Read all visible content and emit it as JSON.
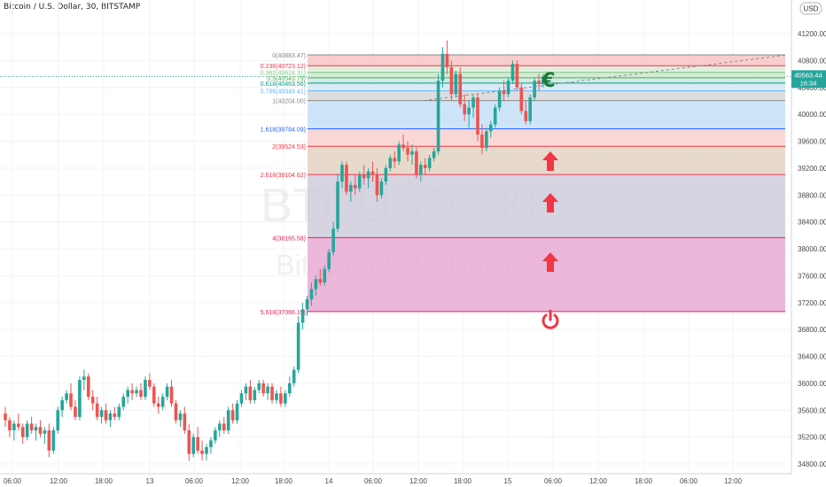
{
  "header": {
    "title": "Bitcoin / U.S. Dollar, 30, BITSTAMP"
  },
  "currency_badge": "USD",
  "watermark": {
    "symbol": "BTCUSD, 30",
    "name": "Bitcoin / U.S. Dollar"
  },
  "price_tag": {
    "price": "40563.44",
    "countdown": "16:34"
  },
  "y_ticks": [
    "41200.00",
    "40800.00",
    "40400.00",
    "40000.00",
    "39600.00",
    "39200.00",
    "38800.00",
    "38400.00",
    "38000.00",
    "37600.00",
    "37200.00",
    "36800.00",
    "36400.00",
    "36000.00",
    "35600.00",
    "35200.00",
    "34800.00"
  ],
  "x_ticks": [
    "06:00",
    "12:00",
    "18:00",
    "13",
    "06:00",
    "12:00",
    "18:00",
    "14",
    "06:00",
    "12:00",
    "18:00",
    "15",
    "06:00",
    "12:00",
    "18:00",
    "06:00",
    "12:00"
  ],
  "fib_levels": [
    {
      "label": "0(40883.47)",
      "ratio": 0,
      "price": 40883.47,
      "color": "#888888"
    },
    {
      "label": "0.236(40723.12)",
      "ratio": 0.236,
      "price": 40723.12,
      "color": "#f23645"
    },
    {
      "label": "0.382(40624.31)",
      "ratio": 0.382,
      "price": 40624.31,
      "color": "#81c784"
    },
    {
      "label": "0.5(40543.79)",
      "ratio": 0.5,
      "price": 40543.79,
      "color": "#4caf50"
    },
    {
      "label": "0.618(40463.56)",
      "ratio": 0.618,
      "price": 40463.56,
      "color": "#089981"
    },
    {
      "label": "0.786(40349.41)",
      "ratio": 0.786,
      "price": 40349.41,
      "color": "#64b5f6"
    },
    {
      "label": "1(40204.00)",
      "ratio": 1,
      "price": 40204.0,
      "color": "#888888"
    },
    {
      "label": "1.618(39784.09)",
      "ratio": 1.618,
      "price": 39784.09,
      "color": "#2962ff"
    },
    {
      "label": "2(39524.53)",
      "ratio": 2,
      "price": 39524.53,
      "color": "#f23645"
    },
    {
      "label": "2.618(39104.62)",
      "ratio": 2.618,
      "price": 39104.62,
      "color": "#f23645"
    },
    {
      "label": "4(38165.58)",
      "ratio": 4,
      "price": 38165.58,
      "color": "#e91e63"
    },
    {
      "label": "5.618(37066.19)",
      "ratio": 5.618,
      "price": 37066.19,
      "color": "#e91e63"
    }
  ],
  "annotations": {
    "euro_icon": "euro-icon",
    "arrow_icon": "arrow-up-icon",
    "power_icon": "power-icon"
  },
  "colors": {
    "up": "#26a69a",
    "down": "#ef5350",
    "grid": "#f0f3fa",
    "axis_text": "#4a4a4a"
  },
  "chart_data": {
    "type": "candlestick",
    "symbol": "BTCUSD",
    "interval": "30",
    "ylim": [
      34700,
      41600
    ],
    "last_price": 40563.44,
    "ohlc": [
      [
        35550,
        35650,
        35350,
        35450
      ],
      [
        35450,
        35500,
        35200,
        35300
      ],
      [
        35300,
        35450,
        35150,
        35400
      ],
      [
        35400,
        35550,
        35300,
        35350
      ],
      [
        35350,
        35400,
        35100,
        35200
      ],
      [
        35200,
        35450,
        35150,
        35400
      ],
      [
        35400,
        35500,
        35250,
        35300
      ],
      [
        35300,
        35400,
        35150,
        35350
      ],
      [
        35350,
        35450,
        35200,
        35250
      ],
      [
        35250,
        35350,
        35100,
        35300
      ],
      [
        35300,
        35400,
        34900,
        35000
      ],
      [
        35000,
        35350,
        34950,
        35300
      ],
      [
        35300,
        35650,
        35250,
        35600
      ],
      [
        35600,
        35800,
        35500,
        35750
      ],
      [
        35750,
        35900,
        35700,
        35850
      ],
      [
        35850,
        36000,
        35600,
        35650
      ],
      [
        35650,
        35750,
        35450,
        35500
      ],
      [
        35500,
        36100,
        35450,
        36050
      ],
      [
        36050,
        36200,
        35900,
        36100
      ],
      [
        36100,
        36150,
        35750,
        35800
      ],
      [
        35800,
        35900,
        35600,
        35700
      ],
      [
        35700,
        35800,
        35450,
        35500
      ],
      [
        35500,
        35650,
        35400,
        35600
      ],
      [
        35600,
        35700,
        35400,
        35450
      ],
      [
        35450,
        35600,
        35350,
        35550
      ],
      [
        35550,
        35650,
        35450,
        35500
      ],
      [
        35500,
        35700,
        35450,
        35650
      ],
      [
        35650,
        35850,
        35600,
        35800
      ],
      [
        35800,
        35950,
        35700,
        35900
      ],
      [
        35900,
        36000,
        35750,
        35850
      ],
      [
        35850,
        35950,
        35800,
        35900
      ],
      [
        35900,
        36000,
        35750,
        35800
      ],
      [
        35800,
        36100,
        35750,
        36050
      ],
      [
        36050,
        36150,
        35900,
        35950
      ],
      [
        35950,
        36000,
        35650,
        35700
      ],
      [
        35700,
        35800,
        35550,
        35650
      ],
      [
        35650,
        35850,
        35600,
        35800
      ],
      [
        35800,
        36000,
        35750,
        35950
      ],
      [
        35950,
        36050,
        35650,
        35700
      ],
      [
        35700,
        35750,
        35400,
        35450
      ],
      [
        35450,
        35600,
        35350,
        35550
      ],
      [
        35550,
        35650,
        35250,
        35300
      ],
      [
        35300,
        35400,
        34850,
        34950
      ],
      [
        34950,
        35250,
        34900,
        35200
      ],
      [
        35200,
        35350,
        34950,
        35000
      ],
      [
        35000,
        35150,
        34850,
        34950
      ],
      [
        34950,
        35100,
        34850,
        35050
      ],
      [
        35050,
        35200,
        34950,
        35150
      ],
      [
        35150,
        35350,
        35100,
        35300
      ],
      [
        35300,
        35450,
        35200,
        35400
      ],
      [
        35400,
        35500,
        35250,
        35300
      ],
      [
        35300,
        35650,
        35250,
        35600
      ],
      [
        35600,
        35700,
        35400,
        35450
      ],
      [
        35450,
        35750,
        35400,
        35700
      ],
      [
        35700,
        35900,
        35650,
        35850
      ],
      [
        35850,
        36000,
        35750,
        35950
      ],
      [
        35950,
        36050,
        35700,
        35750
      ],
      [
        35750,
        35950,
        35700,
        35900
      ],
      [
        35900,
        36050,
        35850,
        36000
      ],
      [
        36000,
        36050,
        35800,
        35850
      ],
      [
        35850,
        36000,
        35750,
        35950
      ],
      [
        35950,
        36000,
        35700,
        35750
      ],
      [
        35750,
        35900,
        35700,
        35850
      ],
      [
        35850,
        35950,
        35650,
        35700
      ],
      [
        35700,
        35900,
        35650,
        35850
      ],
      [
        35850,
        36100,
        35800,
        36000
      ],
      [
        36000,
        36250,
        35950,
        36200
      ],
      [
        36200,
        37000,
        36150,
        36900
      ],
      [
        36900,
        37200,
        36800,
        37100
      ],
      [
        37100,
        37300,
        37000,
        37250
      ],
      [
        37250,
        37500,
        37150,
        37400
      ],
      [
        37400,
        37600,
        37300,
        37550
      ],
      [
        37550,
        37700,
        37450,
        37500
      ],
      [
        37500,
        37750,
        37450,
        37700
      ],
      [
        37700,
        38000,
        37650,
        37950
      ],
      [
        37950,
        38400,
        37900,
        38300
      ],
      [
        38300,
        39100,
        38250,
        39000
      ],
      [
        39000,
        39300,
        38900,
        39250
      ],
      [
        39250,
        39300,
        38800,
        38850
      ],
      [
        38850,
        39000,
        38700,
        38950
      ],
      [
        38950,
        39100,
        38800,
        38900
      ],
      [
        38900,
        39150,
        38850,
        39100
      ],
      [
        39100,
        39250,
        38950,
        39050
      ],
      [
        39050,
        39200,
        38900,
        39150
      ],
      [
        39150,
        39300,
        39000,
        39100
      ],
      [
        39100,
        39200,
        38700,
        38800
      ],
      [
        38800,
        39050,
        38750,
        39000
      ],
      [
        39000,
        39250,
        38950,
        39200
      ],
      [
        39200,
        39400,
        39150,
        39350
      ],
      [
        39350,
        39450,
        39200,
        39300
      ],
      [
        39300,
        39600,
        39250,
        39550
      ],
      [
        39550,
        39700,
        39450,
        39500
      ],
      [
        39500,
        39600,
        39300,
        39400
      ],
      [
        39400,
        39550,
        39250,
        39450
      ],
      [
        39450,
        39500,
        39050,
        39100
      ],
      [
        39100,
        39300,
        39000,
        39250
      ],
      [
        39250,
        39350,
        39100,
        39200
      ],
      [
        39200,
        39400,
        39150,
        39350
      ],
      [
        39350,
        39500,
        39300,
        39450
      ],
      [
        39450,
        40600,
        39400,
        40500
      ],
      [
        40500,
        41000,
        40400,
        40900
      ],
      [
        40900,
        41100,
        40600,
        40700
      ],
      [
        40700,
        40800,
        40200,
        40300
      ],
      [
        40300,
        40650,
        40250,
        40600
      ],
      [
        40600,
        40700,
        40100,
        40150
      ],
      [
        40150,
        40300,
        39900,
        40000
      ],
      [
        40000,
        40200,
        39800,
        40100
      ],
      [
        40100,
        40300,
        39950,
        40250
      ],
      [
        40250,
        40300,
        39600,
        39700
      ],
      [
        39700,
        39850,
        39400,
        39500
      ],
      [
        39500,
        39800,
        39450,
        39750
      ],
      [
        39750,
        39900,
        39650,
        39850
      ],
      [
        39850,
        40150,
        39800,
        40100
      ],
      [
        40100,
        40400,
        40050,
        40350
      ],
      [
        40350,
        40500,
        40200,
        40300
      ],
      [
        40300,
        40550,
        40250,
        40500
      ],
      [
        40500,
        40800,
        40450,
        40750
      ],
      [
        40750,
        40800,
        40350,
        40400
      ],
      [
        40400,
        40450,
        40000,
        40050
      ],
      [
        40050,
        40200,
        39850,
        39900
      ],
      [
        39900,
        40300,
        39850,
        40250
      ],
      [
        40250,
        40550,
        40200,
        40500
      ],
      [
        40500,
        40600,
        40350,
        40450
      ],
      [
        40450,
        40600,
        40400,
        40563
      ]
    ]
  }
}
